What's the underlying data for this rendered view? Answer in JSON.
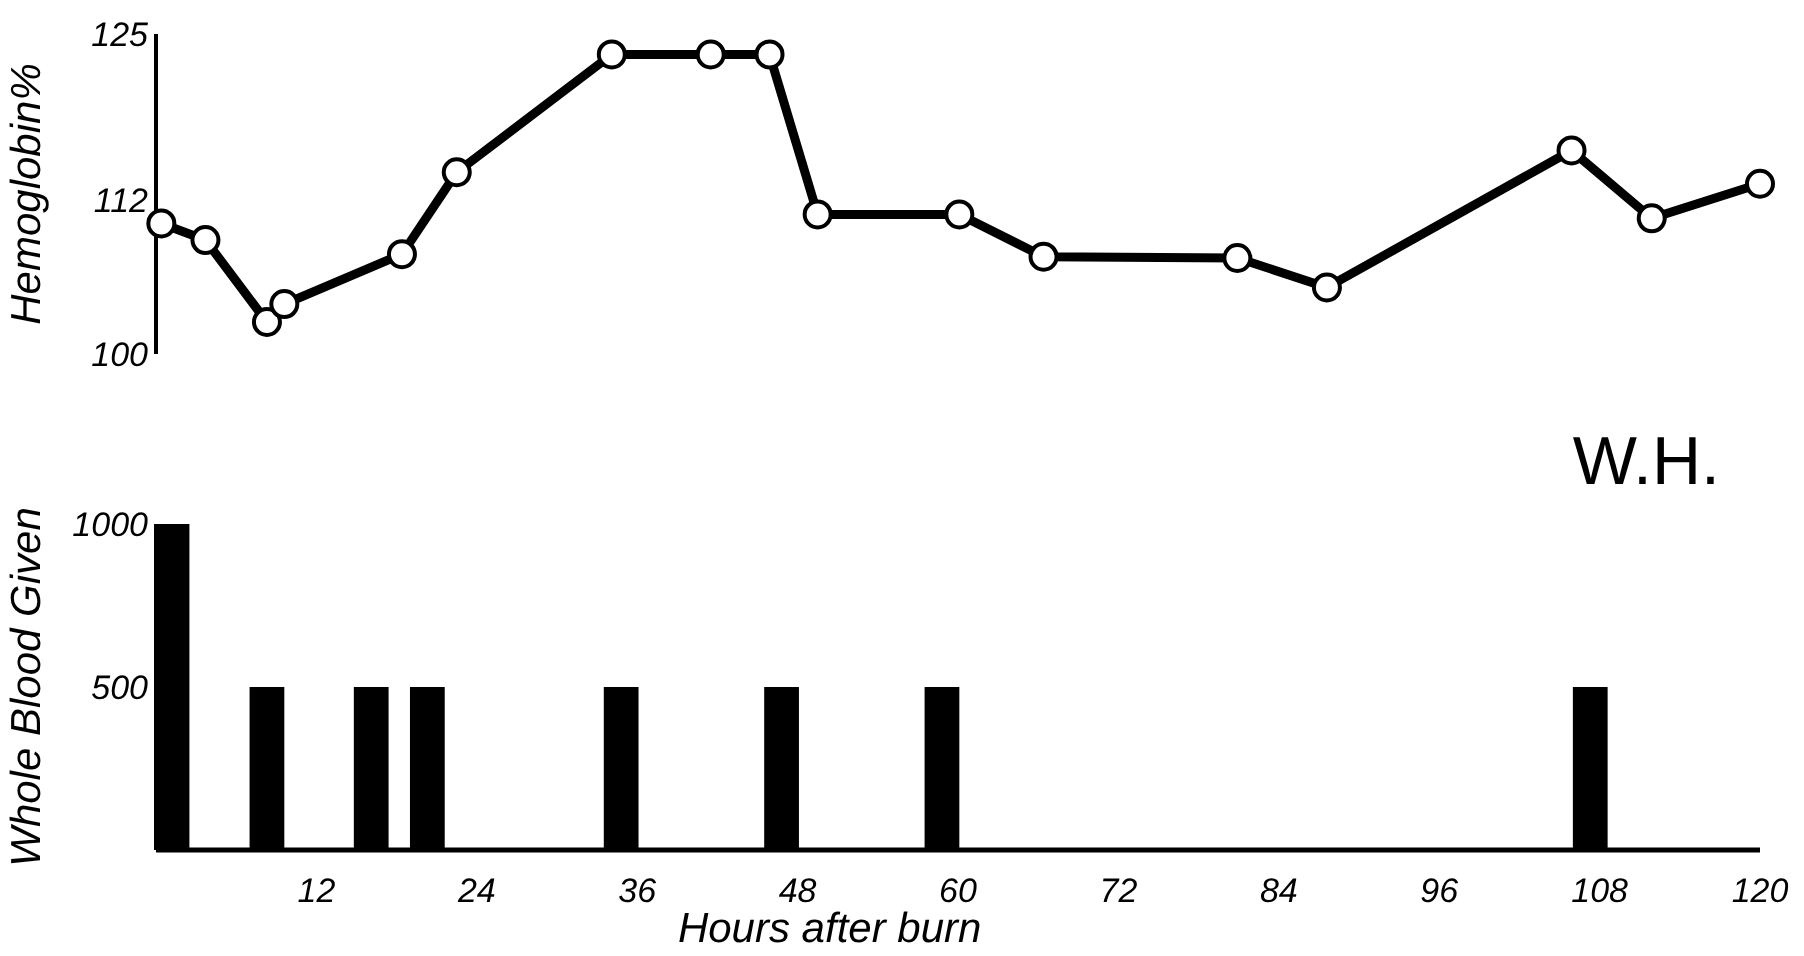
{
  "chart_data": [
    {
      "type": "line",
      "ylabel": "Hemoglobin%",
      "xlim": [
        0,
        120
      ],
      "ylim": [
        100,
        125
      ],
      "yticks": [
        100,
        112,
        125
      ],
      "tick_labels": "y",
      "marker": "circle",
      "line_style": "solid",
      "grid": false,
      "x": [
        0.4,
        3.7,
        8.3,
        9.6,
        18.4,
        22.5,
        34.1,
        41.5,
        45.9,
        49.5,
        60.1,
        66.4,
        80.9,
        87.6,
        105.9,
        111.9,
        120
      ],
      "series": [
        {
          "color": "#000000",
          "values": [
            110.2,
            108.9,
            102.5,
            103.9,
            107.8,
            114.2,
            123.4,
            123.4,
            123.4,
            110.9,
            110.9,
            107.6,
            107.5,
            105.2,
            115.9,
            110.6,
            113.3
          ]
        }
      ]
    },
    {
      "type": "bar",
      "xlabel": "Hours after burn",
      "ylabel": "Whole Blood Given",
      "annotations": [
        "W.H."
      ],
      "xlim": [
        0,
        120
      ],
      "xticks": [
        12,
        24,
        36,
        48,
        60,
        72,
        84,
        96,
        108,
        120
      ],
      "ylim": [
        0,
        1000
      ],
      "yticks": [
        500,
        1000
      ],
      "grid": false,
      "x": [
        1.2,
        8.3,
        16.1,
        20.3,
        34.8,
        46.8,
        58.8,
        107.3
      ],
      "series": [
        {
          "color": "#000000",
          "values": [
            1000,
            500,
            500,
            500,
            500,
            500,
            500,
            500
          ]
        }
      ]
    }
  ]
}
